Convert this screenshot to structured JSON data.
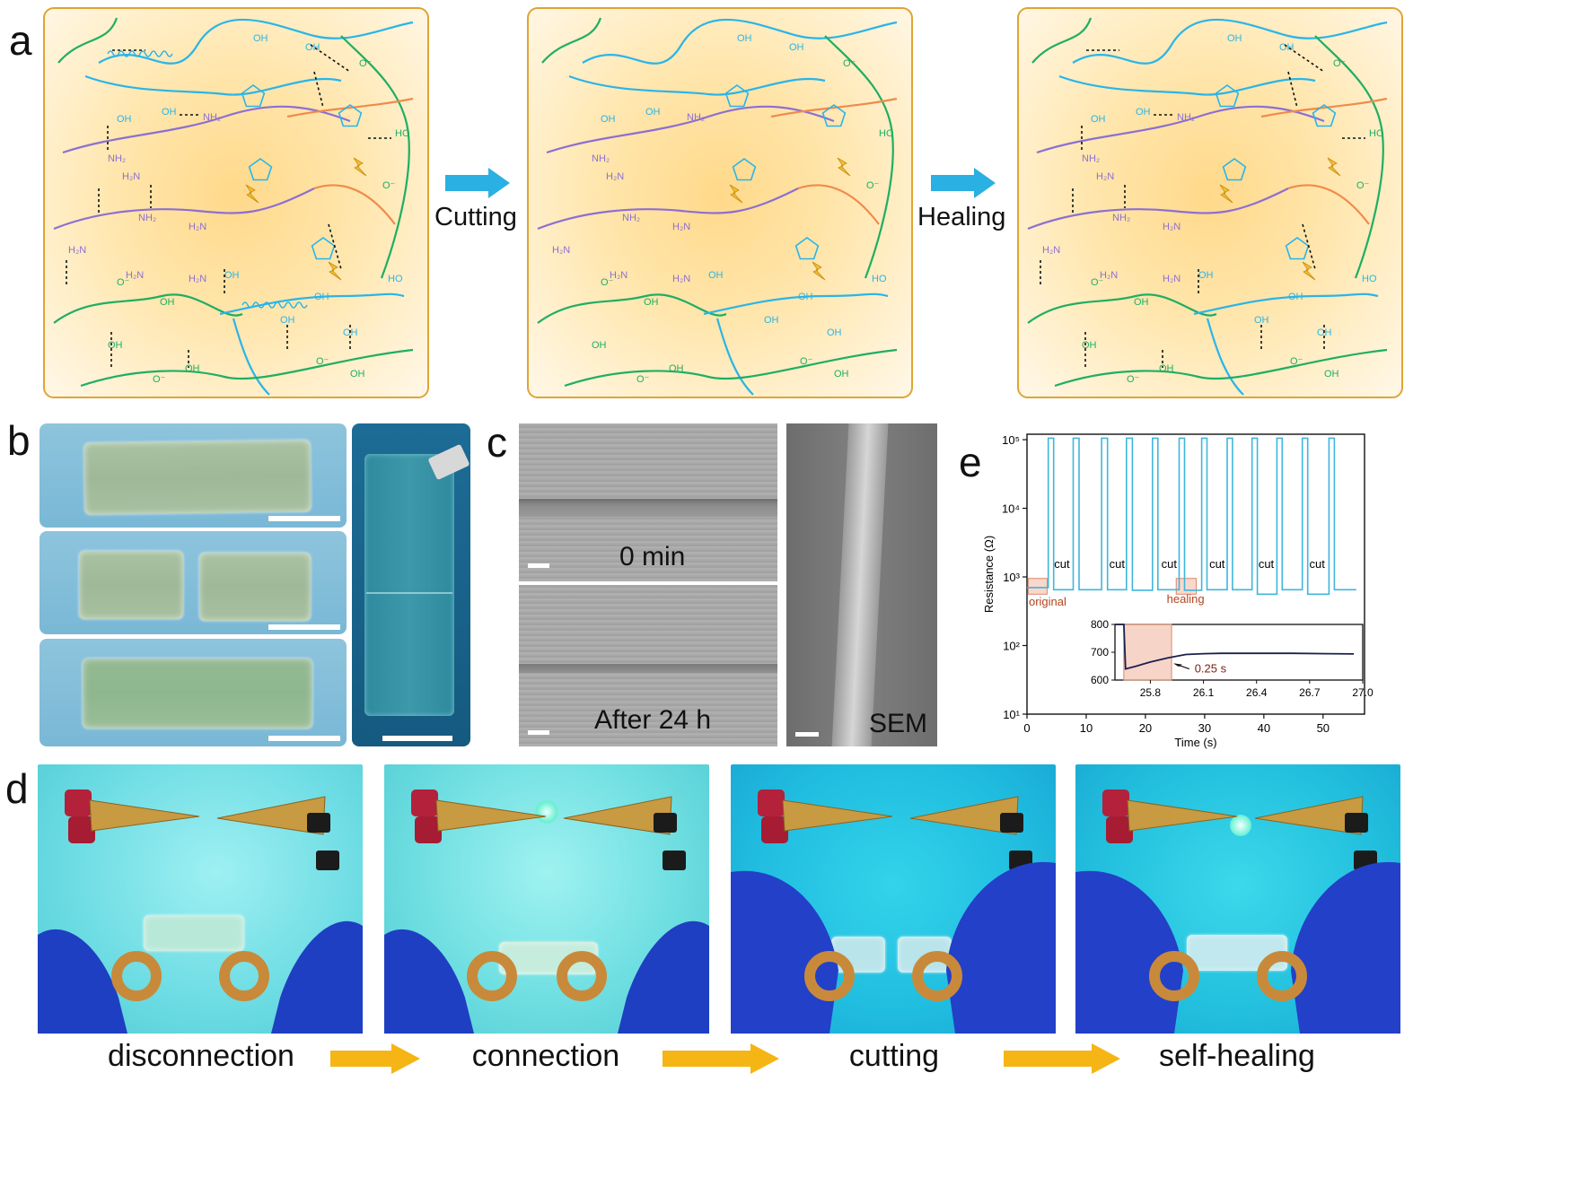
{
  "panels": {
    "a": {
      "letter": "a",
      "arrow1_label": "Cutting",
      "arrow2_label": "Healing"
    },
    "b": {
      "letter": "b"
    },
    "c": {
      "letter": "c",
      "label_top": "0 min",
      "label_bottom": "After 24 h",
      "label_sem": "SEM"
    },
    "d": {
      "letter": "d",
      "captions": [
        "disconnection",
        "connection",
        "cutting",
        "self-healing"
      ]
    },
    "e": {
      "letter": "e"
    }
  },
  "chem_labels": {
    "oh": "OH",
    "ho": "HO",
    "nh2": "NH₂",
    "h2n": "H₂N",
    "o": "O",
    "o_minus": "O⁻"
  },
  "colors": {
    "cyan_chain": "#29b5e8",
    "green_chain": "#1fae63",
    "purple_chain": "#8c6fd2",
    "orange_chain": "#f08a4b",
    "bond_dash": "#111111",
    "arrow_blue": "#2ab0e2",
    "arrow_yellow": "#f5b514",
    "trace": "#3fb6dd",
    "inset_trace": "#1a1f4e",
    "highlight": "#f2b8a3"
  },
  "chart_data": {
    "type": "line",
    "xlabel": "Time (s)",
    "ylabel": "Resistance (Ω)",
    "x_ticks": [
      "0",
      "10",
      "20",
      "30",
      "40",
      "50"
    ],
    "y_ticks": [
      "10¹",
      "10²",
      "10³",
      "10⁴",
      "10⁵"
    ],
    "xlim": [
      0,
      57
    ],
    "ylog": true,
    "ylim": [
      10,
      120000
    ],
    "series": [
      {
        "x": [
          0,
          3.6,
          3.6,
          4.5,
          4.5,
          7.8,
          7.8,
          8.8,
          8.8,
          12.6,
          12.6,
          13.6,
          13.6,
          16.8,
          16.8,
          17.8,
          17.8,
          21.2,
          21.2,
          22.1,
          22.1,
          25.7,
          25.7,
          26.6,
          26.6,
          29.5,
          29.5,
          30.4,
          30.4,
          33.8,
          33.8,
          34.7,
          34.7,
          38.0,
          38.0,
          38.9,
          38.9,
          42.2,
          42.2,
          43.1,
          43.1,
          46.5,
          46.5,
          47.4,
          47.4,
          51.0,
          51.0,
          51.9,
          51.9,
          55.6
        ],
        "y": [
          700,
          700,
          105000,
          105000,
          650,
          650,
          105000,
          105000,
          650,
          650,
          105000,
          105000,
          650,
          650,
          105000,
          105000,
          640,
          640,
          105000,
          105000,
          650,
          650,
          105000,
          105000,
          640,
          640,
          105000,
          105000,
          650,
          650,
          105000,
          105000,
          650,
          650,
          105000,
          105000,
          560,
          560,
          105000,
          105000,
          650,
          650,
          105000,
          105000,
          560,
          560,
          105000,
          105000,
          650,
          650
        ]
      }
    ],
    "annotations": [
      "cut",
      "cut",
      "cut",
      "cut",
      "cut",
      "cut",
      "original",
      "healing"
    ],
    "inset": {
      "x_ticks": [
        "25.8",
        "26.1",
        "26.4",
        "26.7",
        "27.0"
      ],
      "y_ticks": [
        "600",
        "700",
        "800"
      ],
      "xlim": [
        25.6,
        27.0
      ],
      "ylim": [
        600,
        800
      ],
      "x": [
        25.6,
        25.65,
        25.66,
        25.72,
        25.8,
        25.9,
        26.0,
        26.1,
        26.2,
        26.4,
        26.6,
        26.8,
        26.95
      ],
      "y": [
        800,
        800,
        640,
        650,
        665,
        680,
        692,
        695,
        696,
        696,
        696,
        695,
        694
      ],
      "annotation": "0.25 s"
    }
  }
}
